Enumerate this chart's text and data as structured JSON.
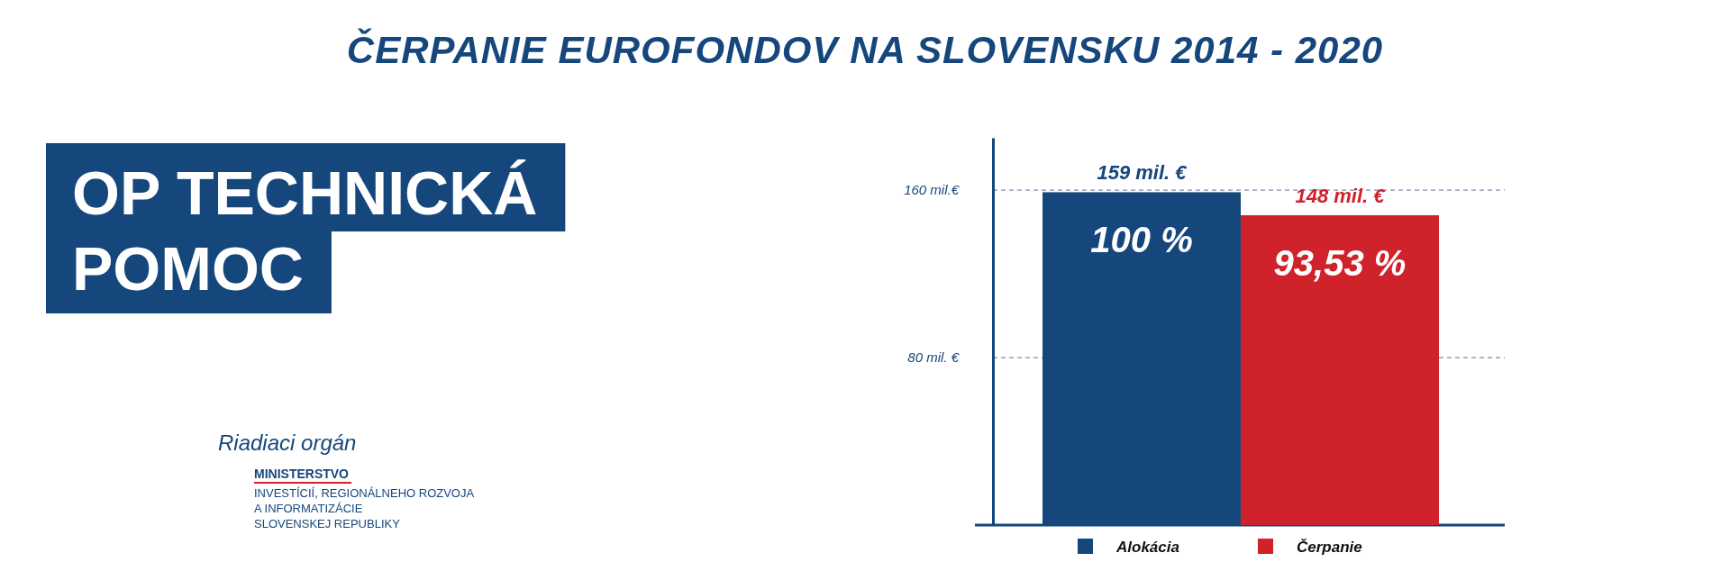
{
  "chart_data": {
    "type": "bar",
    "title": "ČERPANIE EUROFONDOV NA SLOVENSKU 2014 - 2020",
    "subtitle": "OP TECHNICKÁ POMOC",
    "categories": [
      null
    ],
    "series": [
      {
        "name": "Alokácia",
        "color": "#15467c",
        "values": [
          159
        ],
        "value_labels": [
          "159 mil.  €"
        ]
      },
      {
        "name": "Čerpanie",
        "color": "#d0222b",
        "values": [
          148
        ],
        "value_labels": [
          "148 mil. €"
        ]
      }
    ],
    "ylim": [
      0,
      185
    ],
    "yticks": [
      {
        "value": 80,
        "label": "80 mil. €"
      },
      {
        "value": 160,
        "label": "160 mil.€"
      }
    ],
    "grid": "y",
    "legend": "bottom",
    "annotations": [
      "100 %",
      "93,53 %",
      "Riadiaci orgán",
      "MINISTERSTVO",
      "INVESTÍCIÍ, REGIONÁLNEHO ROZVOJA",
      "A INFORMATIZÁCIE",
      "SLOVENSKEJ REPUBLIKY"
    ]
  }
}
